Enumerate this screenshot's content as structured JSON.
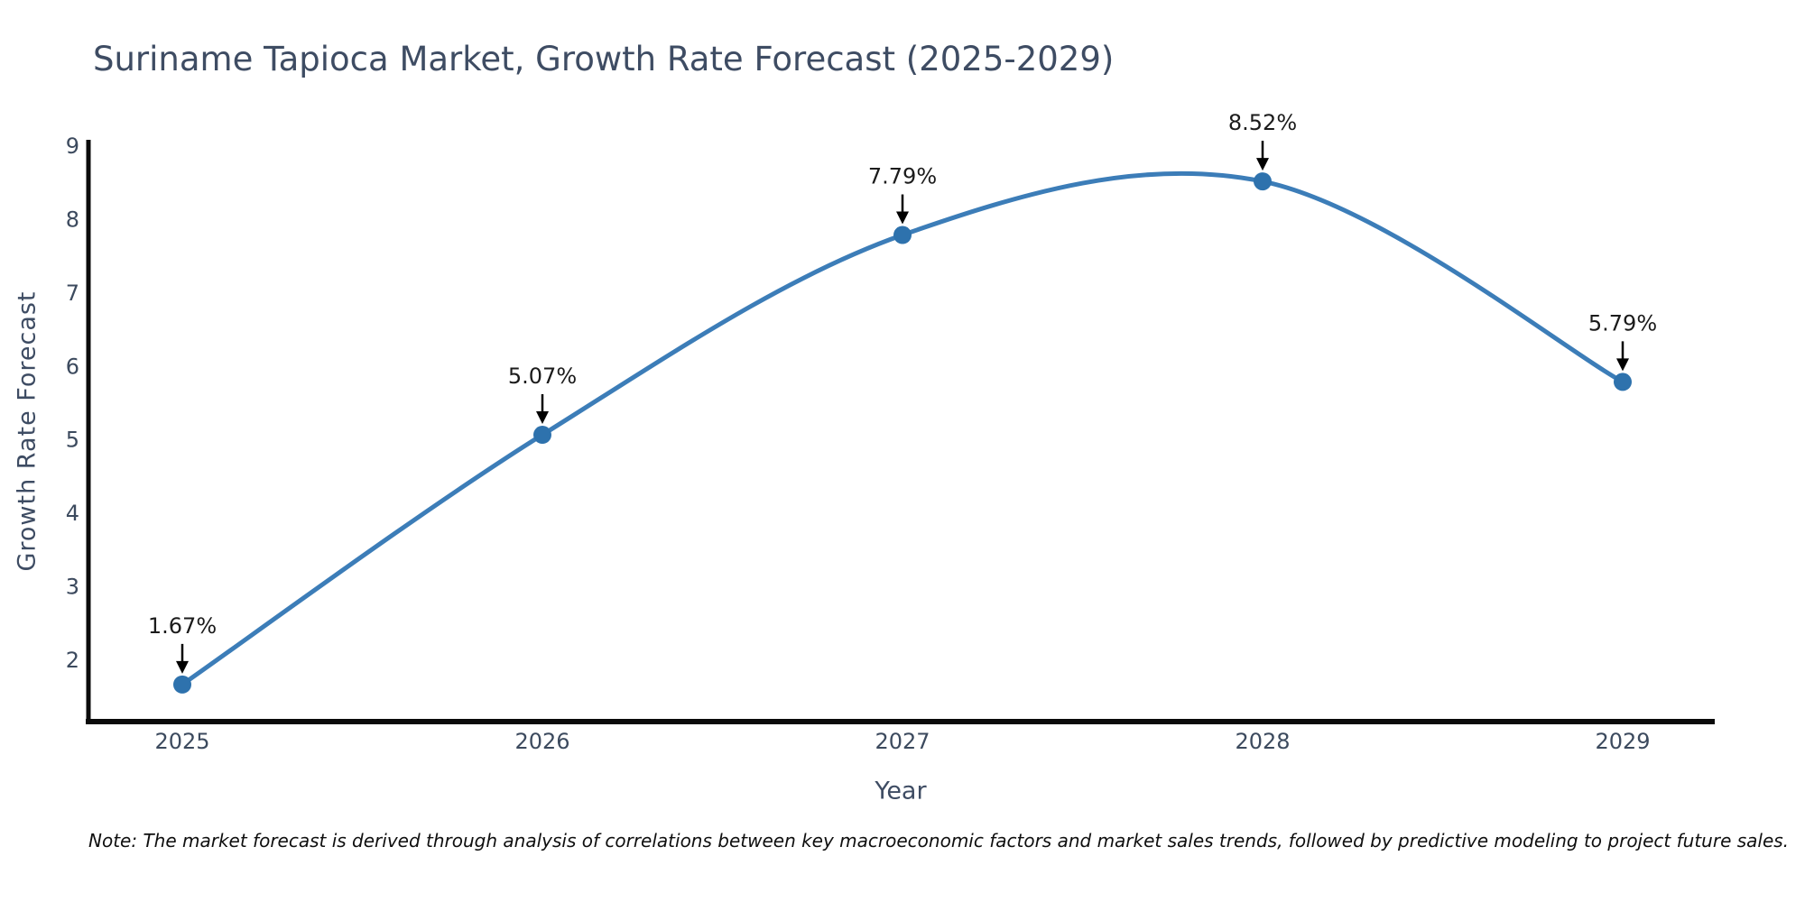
{
  "title": "Suriname Tapioca Market, Growth Rate Forecast (2025-2029)",
  "note": "Note: The market forecast is derived through analysis of correlations between key macroeconomic factors and market sales trends, followed by predictive modeling to project future sales.",
  "chart_data": {
    "type": "line",
    "title": "Suriname Tapioca Market, Growth Rate Forecast (2025-2029)",
    "xlabel": "Year",
    "ylabel": "Growth Rate Forecast",
    "categories": [
      "2025",
      "2026",
      "2027",
      "2028",
      "2029"
    ],
    "values": [
      1.67,
      5.07,
      7.79,
      8.52,
      5.79
    ],
    "point_labels": [
      "1.67%",
      "5.07%",
      "7.79%",
      "8.52%",
      "5.79%"
    ],
    "yticks": [
      2,
      3,
      4,
      5,
      6,
      7,
      8,
      9
    ],
    "ylim": [
      1.1,
      9.1
    ],
    "grid": false,
    "legend": "none",
    "smooth": true,
    "line_color": "#3c7db8",
    "marker_color": "#2e72ad",
    "annotation_color": "#1b1b1b",
    "arrow_color": "#000000",
    "axis_spine_color": "#0b0b0b",
    "tick_label_color": "#3c4a5e",
    "axis_title_color": "#3e4c63"
  }
}
